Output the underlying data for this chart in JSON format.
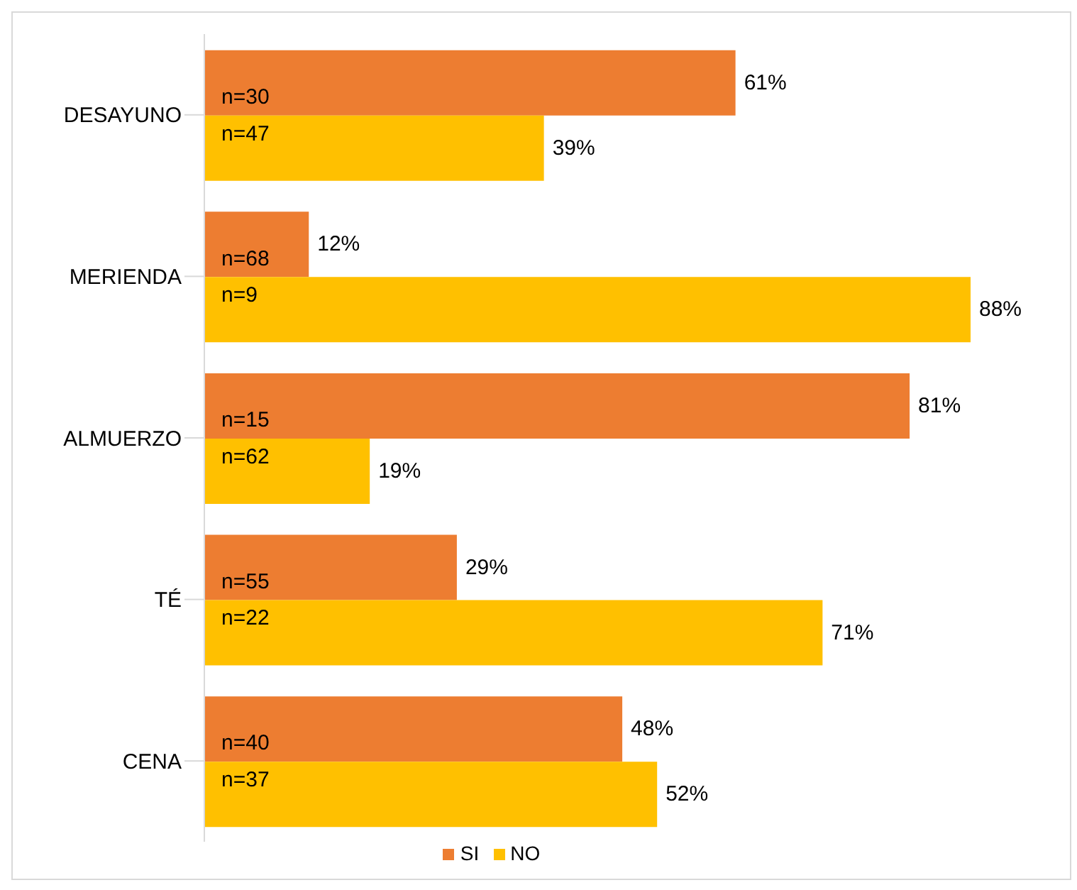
{
  "chart_data": {
    "type": "bar",
    "orientation": "horizontal",
    "categories": [
      "DESAYUNO",
      "MERIENDA",
      "ALMUERZO",
      "TÉ",
      "CENA"
    ],
    "series": [
      {
        "name": "SI",
        "color": "#ed7d31",
        "values": [
          61,
          12,
          81,
          29,
          48
        ],
        "value_labels": [
          "61%",
          "12%",
          "81%",
          "29%",
          "48%"
        ]
      },
      {
        "name": "NO",
        "color": "#ffc000",
        "values": [
          39,
          88,
          19,
          71,
          52
        ],
        "value_labels": [
          "39%",
          "88%",
          "19%",
          "71%",
          "52%"
        ]
      }
    ],
    "annotations": [
      {
        "text": "n=30",
        "y": "DESAYUNO"
      },
      {
        "text": "n=47",
        "y": "DESAYUNO"
      },
      {
        "text": "n=68",
        "y": "MERIENDA"
      },
      {
        "text": "n=9",
        "y": "MERIENDA"
      },
      {
        "text": "n=15",
        "y": "ALMUERZO"
      },
      {
        "text": "n=62",
        "y": "ALMUERZO"
      },
      {
        "text": "n=55",
        "y": "TÉ"
      },
      {
        "text": "n=22",
        "y": "TÉ"
      },
      {
        "text": "n=40",
        "y": "CENA"
      },
      {
        "text": "n=37",
        "y": "CENA"
      }
    ],
    "legend": "bottom",
    "grid": false
  }
}
